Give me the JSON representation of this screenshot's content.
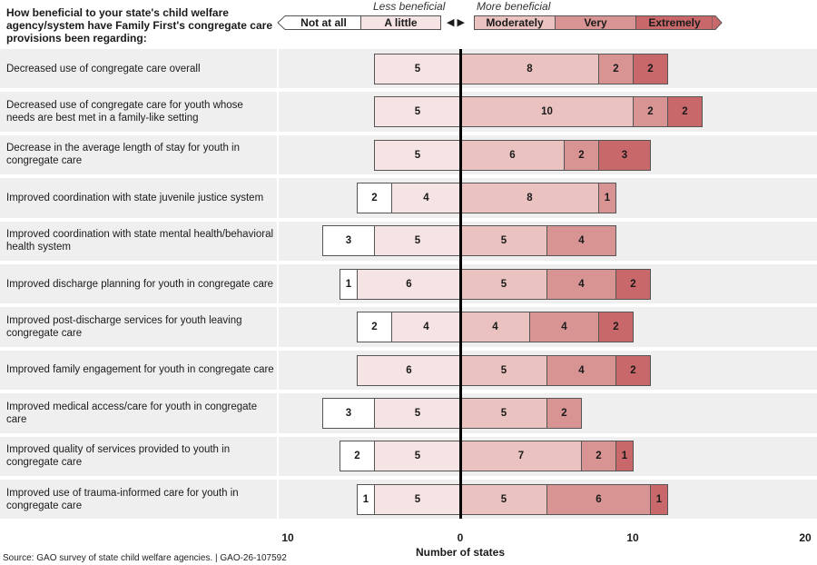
{
  "chart_data": {
    "type": "bar",
    "subtype": "diverging-stacked-horizontal",
    "title": "How beneficial to your state's child welfare agency/system have Family First's congregate care provisions been regarding:",
    "xlabel": "Number of states",
    "ylabel": "",
    "xlim": [
      -10,
      20
    ],
    "xticks": [
      {
        "value": -10,
        "label": "10"
      },
      {
        "value": 0,
        "label": "0"
      },
      {
        "value": 10,
        "label": "10"
      },
      {
        "value": 20,
        "label": "20"
      }
    ],
    "legend": {
      "placement": "top-right",
      "less_caption": "Less beneficial",
      "more_caption": "More beneficial",
      "divider_glyph": "◀ ▶"
    },
    "series": [
      {
        "name": "Not at all",
        "side": "negative",
        "color": "#ffffff",
        "values": [
          0,
          0,
          0,
          2,
          3,
          1,
          2,
          0,
          3,
          2,
          1
        ]
      },
      {
        "name": "A little",
        "side": "negative",
        "color": "#f6e3e3",
        "values": [
          5,
          5,
          5,
          4,
          5,
          6,
          4,
          6,
          5,
          5,
          5
        ]
      },
      {
        "name": "Moderately",
        "side": "positive",
        "color": "#eac3c0",
        "values": [
          8,
          10,
          6,
          8,
          5,
          5,
          4,
          5,
          5,
          7,
          5
        ]
      },
      {
        "name": "Very",
        "side": "positive",
        "color": "#d79493",
        "values": [
          2,
          2,
          2,
          1,
          4,
          4,
          4,
          4,
          2,
          2,
          6
        ]
      },
      {
        "name": "Extremely",
        "side": "positive",
        "color": "#c9686a",
        "values": [
          2,
          2,
          3,
          0,
          0,
          2,
          2,
          2,
          0,
          1,
          1
        ]
      }
    ],
    "categories": [
      "Decreased use of congregate care overall",
      "Decreased use of congregate care for youth whose needs are best met in a family-like setting",
      "Decrease in the average length of stay for youth in congregate care",
      "Improved coordination with state juvenile justice system",
      "Improved coordination with state mental health/behavioral health system",
      "Improved discharge planning for youth in congregate care",
      "Improved post-discharge services for youth leaving congregate care",
      "Improved family engagement for youth in congregate care",
      "Improved medical access/care for youth in congregate care",
      "Improved quality of services provided to youth in congregate care",
      "Improved use of trauma-informed care for youth in congregate care"
    ],
    "source": "Source: GAO survey of state child welfare agencies.  |  GAO-26-107592"
  }
}
